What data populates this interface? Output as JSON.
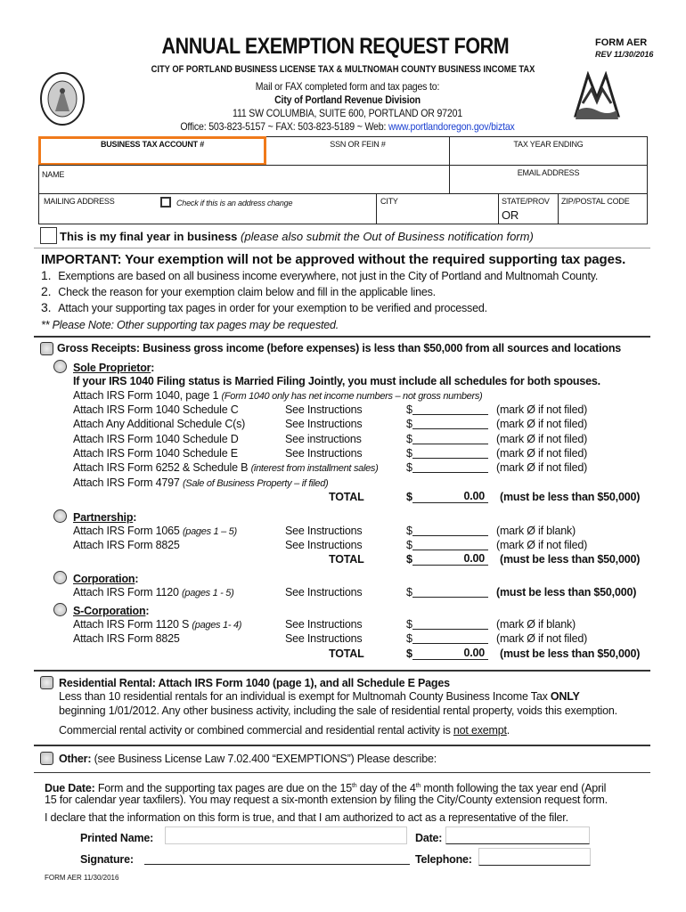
{
  "header": {
    "title": "ANNUAL EXEMPTION REQUEST FORM",
    "form_id": "FORM AER",
    "rev": "REV 11/30/2016",
    "subtitle": "CITY OF PORTLAND BUSINESS LICENSE TAX & MULTNOMAH COUNTY BUSINESS INCOME TAX",
    "mail_line": "Mail or FAX completed form and tax pages to:",
    "division": "City of Portland Revenue Division",
    "address": "111 SW COLUMBIA, SUITE 600, PORTLAND OR 97201",
    "contact": "Office: 503-823-5157 ~ FAX: 503-823-5189 ~ Web: ",
    "web_link": "www.portlandoregon.gov/biztax",
    "seal_text": "CITY OF PORTLAND OREGON 1851",
    "accent": "#f07a1a"
  },
  "fields": {
    "business_tax_account": "BUSINESS TAX ACCOUNT #",
    "ssn_fein": "SSN OR FEIN #",
    "tax_year_ending": "TAX YEAR ENDING",
    "name": "NAME",
    "email": "EMAIL ADDRESS",
    "mailing_address": "MAILING ADDRESS",
    "address_change": "Check if this is an address change",
    "city": "CITY",
    "state": "STATE/PROV",
    "state_value": "OR",
    "zip": "ZIP/POSTAL CODE"
  },
  "final_year": {
    "bold": "This is my final year in business",
    "italic": "(please also submit the Out of Business notification form)"
  },
  "important": {
    "heading": "IMPORTANT: Your exemption will not be approved without the required supporting tax pages.",
    "items": [
      "Exemptions are based on all business income everywhere, not just in the City of Portland and Multnomah County.",
      "Check the reason for your exemption claim below and fill in the applicable lines.",
      "Attach your supporting tax pages in order for your exemption to be verified and processed."
    ],
    "note": "** Please Note: Other supporting tax pages may be requested."
  },
  "gross": {
    "heading": "Gross Receipts:  Business gross income (before expenses) is less than $50,000 from all sources and locations",
    "sole": {
      "label": "Sole Proprietor",
      "warning": "If your IRS 1040 Filing status is Married Filing Jointly, you must include all schedules for both spouses.",
      "attach1040": "Attach IRS Form 1040, page 1 ",
      "attach1040_note": "(Form 1040 only has net income numbers – not gross numbers)",
      "rows": [
        {
          "label": "Attach IRS Form 1040 Schedule C",
          "see": "See Instructions",
          "mark": "(mark Ø if not filed)"
        },
        {
          "label": "Attach Any Additional Schedule C(s)",
          "see": "See Instructions",
          "mark": "(mark Ø if not filed)"
        },
        {
          "label": "Attach IRS Form 1040 Schedule D",
          "see": "See instructions",
          "mark": "(mark Ø if not filed)"
        },
        {
          "label": "Attach IRS Form 1040 Schedule E",
          "see": "See Instructions",
          "mark": "(mark Ø if not filed)"
        },
        {
          "label": "Attach IRS Form 6252 & Schedule B ",
          "note": "(interest from installment sales)",
          "mark": "(mark Ø if not filed)"
        }
      ],
      "attach4797": "Attach IRS Form 4797 ",
      "attach4797_note": "(Sale of Business Property – if filed)",
      "total_label": "TOTAL",
      "total_value": "0.00",
      "total_note": "(must be less than $50,000)"
    },
    "partnership": {
      "label": "Partnership",
      "rows": [
        {
          "label": "Attach IRS Form 1065 ",
          "note": "(pages 1 – 5)",
          "see": "See Instructions",
          "mark": "(mark Ø if blank)"
        },
        {
          "label": "Attach IRS Form 8825",
          "see": "See Instructions",
          "mark": "(mark Ø if not filed)"
        }
      ],
      "total_label": "TOTAL",
      "total_value": "0.00",
      "total_note": "(must be less than $50,000)"
    },
    "corporation": {
      "label": "Corporation",
      "rows": [
        {
          "label": "Attach IRS Form 1120 ",
          "note": "(pages 1 - 5)",
          "see": "See Instructions",
          "mark": "(must be less than $50,000)"
        }
      ]
    },
    "scorp": {
      "label": "S-Corporation",
      "rows": [
        {
          "label": "Attach IRS Form 1120 S ",
          "note": "(pages 1- 4)",
          "see": "See Instructions",
          "mark": "(mark Ø if blank)"
        },
        {
          "label": "Attach IRS Form 8825",
          "see": "See Instructions",
          "mark": "(mark Ø if not filed)"
        }
      ],
      "total_label": "TOTAL",
      "total_value": "0.00",
      "total_note": "(must be less than $50,000)"
    },
    "dollar": "$"
  },
  "rental": {
    "heading": "Residential Rental: Attach IRS Form 1040 (page 1), and all Schedule E Pages",
    "line1": "Less than 10 residential rentals for an individual is exempt for Multnomah County Business Income Tax ",
    "line1_bold": "ONLY",
    "line2": "beginning 1/01/2012.  Any other business activity, including the sale of residential rental property, voids this exemption.",
    "line3": "Commercial rental activity or combined commercial and residential rental activity is ",
    "line3_u": "not exempt",
    "line3_end": "."
  },
  "other": {
    "bold": "Other:",
    "text": " (see Business License Law 7.02.400 “EXEMPTIONS”) Please describe:"
  },
  "due": {
    "bold": "Due Date:",
    "a": " Form and the supporting tax pages are due on the 15",
    "sup1": "th",
    "b": " day of the 4",
    "sup2": "th",
    "c": " month following the tax year end (April",
    "line2": "15 for calendar year taxfilers). You may request a six-month extension by filing the City/County extension request form."
  },
  "declare": "I declare that the information on this form is true, and that I am authorized to act as a representative of the filer.",
  "sign": {
    "printed_name": "Printed Name:",
    "date": "Date:",
    "signature": "Signature:",
    "telephone": "Telephone:"
  },
  "footer": "FORM AER 11/30/2016"
}
